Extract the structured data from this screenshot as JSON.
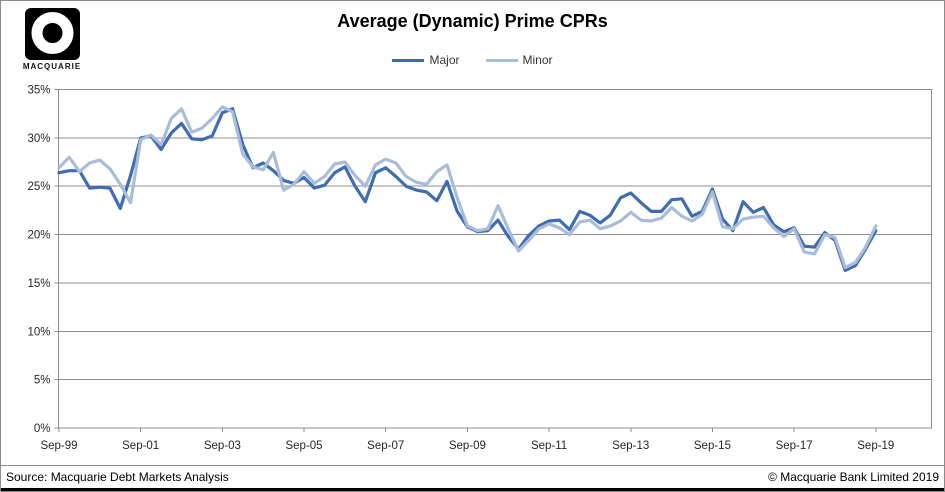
{
  "header": {
    "logo_text": "MACQUARIE",
    "title": "Average (Dynamic) Prime CPRs"
  },
  "legend": [
    {
      "label": "Major",
      "color": "#3F6CB2"
    },
    {
      "label": "Minor",
      "color": "#A9BDD9"
    }
  ],
  "footer": {
    "source": "Source: Macquarie Debt Markets Analysis",
    "copyright": "© Macquarie Bank Limited 2019"
  },
  "chart_data": {
    "type": "line",
    "title": "Average (Dynamic) Prime CPRs",
    "x_unit": "quarterly",
    "x_start": "Sep-99",
    "x_end": "Sep-19",
    "ylim": [
      0,
      35
    ],
    "y_ticks": [
      0,
      5,
      10,
      15,
      20,
      25,
      30,
      35
    ],
    "y_tick_format": "percent",
    "grid": "horizontal",
    "legend_position": "top-center",
    "x_tick_labels": [
      "Sep-99",
      "Sep-01",
      "Sep-03",
      "Sep-05",
      "Sep-07",
      "Sep-09",
      "Sep-11",
      "Sep-13",
      "Sep-15",
      "Sep-17",
      "Sep-19"
    ],
    "x_tick_indices": [
      0,
      8,
      16,
      24,
      32,
      40,
      48,
      56,
      64,
      72,
      80
    ],
    "x_labels": [
      "Sep-99",
      "Dec-99",
      "Mar-00",
      "Jun-00",
      "Sep-00",
      "Dec-00",
      "Mar-01",
      "Jun-01",
      "Sep-01",
      "Dec-01",
      "Mar-02",
      "Jun-02",
      "Sep-02",
      "Dec-02",
      "Mar-03",
      "Jun-03",
      "Sep-03",
      "Dec-03",
      "Mar-04",
      "Jun-04",
      "Sep-04",
      "Dec-04",
      "Mar-05",
      "Jun-05",
      "Sep-05",
      "Dec-05",
      "Mar-06",
      "Jun-06",
      "Sep-06",
      "Dec-06",
      "Mar-07",
      "Jun-07",
      "Sep-07",
      "Dec-07",
      "Mar-08",
      "Jun-08",
      "Sep-08",
      "Dec-08",
      "Mar-09",
      "Jun-09",
      "Sep-09",
      "Dec-09",
      "Mar-10",
      "Jun-10",
      "Sep-10",
      "Dec-10",
      "Mar-11",
      "Jun-11",
      "Sep-11",
      "Dec-11",
      "Mar-12",
      "Jun-12",
      "Sep-12",
      "Dec-12",
      "Mar-13",
      "Jun-13",
      "Sep-13",
      "Dec-13",
      "Mar-14",
      "Jun-14",
      "Sep-14",
      "Dec-14",
      "Mar-15",
      "Jun-15",
      "Sep-15",
      "Dec-15",
      "Mar-16",
      "Jun-16",
      "Sep-16",
      "Dec-16",
      "Mar-17",
      "Jun-17",
      "Sep-17",
      "Dec-17",
      "Mar-18",
      "Jun-18",
      "Sep-18",
      "Dec-18",
      "Mar-19",
      "Jun-19",
      "Sep-19"
    ],
    "series": [
      {
        "name": "Major",
        "color": "#3F6CB2",
        "values": [
          26.4,
          26.6,
          26.6,
          24.8,
          24.9,
          24.8,
          22.7,
          26.1,
          30.0,
          30.2,
          28.8,
          30.5,
          31.5,
          29.9,
          29.8,
          30.2,
          32.6,
          33.0,
          29.3,
          26.9,
          27.4,
          26.6,
          25.6,
          25.3,
          25.9,
          24.8,
          25.1,
          26.4,
          27.0,
          25.0,
          23.4,
          26.4,
          26.9,
          26.0,
          25.0,
          24.6,
          24.4,
          23.5,
          25.5,
          22.4,
          20.8,
          20.3,
          20.4,
          21.5,
          19.8,
          18.5,
          19.9,
          20.9,
          21.4,
          21.5,
          20.5,
          22.4,
          22.0,
          21.2,
          22.0,
          23.8,
          24.3,
          23.3,
          22.4,
          22.4,
          23.6,
          23.7,
          21.9,
          22.4,
          24.7,
          21.6,
          20.4,
          23.4,
          22.3,
          22.8,
          21.0,
          20.3,
          20.7,
          18.8,
          18.7,
          20.2,
          19.4,
          16.3,
          16.8,
          18.5,
          20.4
        ]
      },
      {
        "name": "Minor",
        "color": "#A9BDD9",
        "values": [
          26.9,
          28.0,
          26.5,
          27.4,
          27.7,
          26.8,
          25.2,
          23.3,
          29.8,
          30.3,
          29.3,
          32.0,
          33.0,
          30.6,
          31.0,
          32.0,
          33.2,
          32.7,
          28.3,
          27.0,
          26.7,
          28.5,
          24.6,
          25.2,
          26.5,
          25.3,
          26.0,
          27.3,
          27.5,
          26.1,
          25.0,
          27.2,
          27.8,
          27.4,
          26.0,
          25.4,
          25.2,
          26.5,
          27.2,
          23.8,
          20.9,
          20.4,
          20.6,
          23.0,
          20.6,
          18.3,
          19.4,
          20.6,
          21.1,
          20.7,
          20.0,
          21.3,
          21.5,
          20.6,
          20.9,
          21.4,
          22.3,
          21.5,
          21.4,
          21.7,
          22.8,
          21.9,
          21.4,
          22.1,
          24.4,
          20.8,
          20.6,
          21.6,
          21.8,
          21.9,
          20.7,
          19.8,
          20.6,
          18.2,
          18.0,
          20.0,
          19.7,
          16.6,
          17.1,
          18.7,
          20.9
        ]
      }
    ]
  }
}
